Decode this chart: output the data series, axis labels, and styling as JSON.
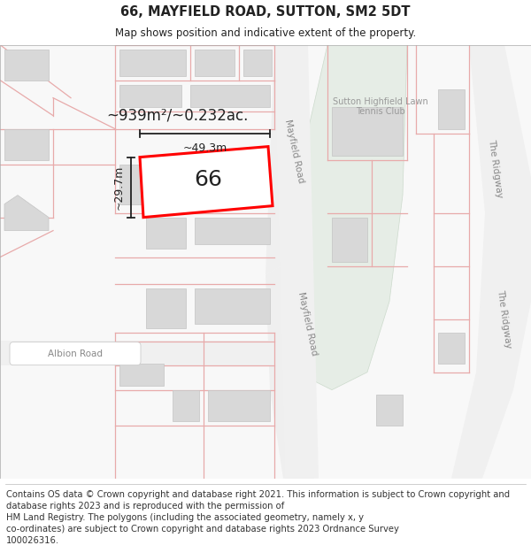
{
  "title_line1": "66, MAYFIELD ROAD, SUTTON, SM2 5DT",
  "title_line2": "Map shows position and indicative extent of the property.",
  "footer_text": "Contains OS data © Crown copyright and database right 2021. This information is subject to Crown copyright and database rights 2023 and is reproduced with the permission of\nHM Land Registry. The polygons (including the associated geometry, namely x, y\nco-ordinates) are subject to Crown copyright and database rights 2023 Ordnance Survey\n100026316.",
  "map_bg": "#f2f2f2",
  "highlight_fill": "#ffffff",
  "highlight_outline": "#ff0000",
  "highlight_lw": 2.2,
  "dim_line_color": "#333333",
  "text_color": "#222222",
  "title_fontsize": 10.5,
  "subtitle_fontsize": 8.5,
  "footer_fontsize": 7.2,
  "label_fontsize": 18,
  "dim_fontsize": 9,
  "area_fontsize": 12,
  "road_label_fontsize": 7.5,
  "green_fill": "#e8f0e8",
  "green_stroke": "#d0e0d0",
  "road_fill": "#f8f8f8",
  "parcel_stroke": "#e0a0a0",
  "parcel_stroke_lw": 0.8,
  "building_fill": "#d8d8d8",
  "building_stroke": "#c0c0c0",
  "road_label_color": "#888888"
}
